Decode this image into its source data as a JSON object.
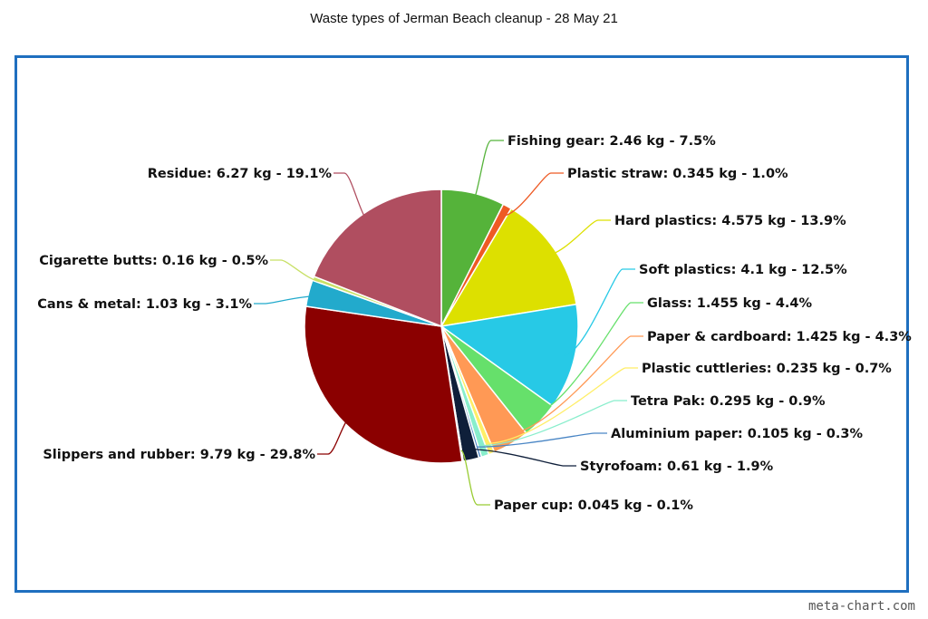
{
  "chart_data": {
    "type": "pie",
    "title": "Waste types of Jerman Beach cleanup - 28 May 21",
    "slices": [
      {
        "name": "Fishing gear",
        "label": "Fishing gear: 2.46 kg - 7.5%",
        "value": 2.46,
        "color": "#55b33a"
      },
      {
        "name": "Plastic straw",
        "label": "Plastic straw: 0.345 kg - 1.0%",
        "value": 0.345,
        "color": "#ee5a24"
      },
      {
        "name": "Hard plastics",
        "label": "Hard plastics: 4.575 kg - 13.9%",
        "value": 4.575,
        "color": "#dde000"
      },
      {
        "name": "Soft plastics",
        "label": "Soft plastics: 4.1 kg - 12.5%",
        "value": 4.1,
        "color": "#27c9e6"
      },
      {
        "name": "Glass",
        "label": "Glass: 1.455 kg - 4.4%",
        "value": 1.455,
        "color": "#66e06b"
      },
      {
        "name": "Paper & cardboard",
        "label": "Paper & cardboard: 1.425 kg - 4.3%",
        "value": 1.425,
        "color": "#ff9955"
      },
      {
        "name": "Plastic cuttleries",
        "label": "Plastic cuttleries: 0.235 kg - 0.7%",
        "value": 0.235,
        "color": "#ffee66"
      },
      {
        "name": "Tetra Pak",
        "label": "Tetra Pak: 0.295 kg - 0.9%",
        "value": 0.295,
        "color": "#88eecc"
      },
      {
        "name": "Aluminium paper",
        "label": "Aluminium paper: 0.105 kg - 0.3%",
        "value": 0.105,
        "color": "#4a86c5"
      },
      {
        "name": "Styrofoam",
        "label": "Styrofoam: 0.61 kg - 1.9%",
        "value": 0.61,
        "color": "#0f1f3a"
      },
      {
        "name": "Paper cup",
        "label": "Paper cup: 0.045 kg - 0.1%",
        "value": 0.045,
        "color": "#99cc33"
      },
      {
        "name": "Slippers and rubber",
        "label": "Slippers and rubber: 9.79 kg - 29.8%",
        "value": 9.79,
        "color": "#8b0000"
      },
      {
        "name": "Cans & metal",
        "label": "Cans & metal: 1.03 kg - 3.1%",
        "value": 1.03,
        "color": "#22aacc"
      },
      {
        "name": "Cigarette butts",
        "label": "Cigarette butts: 0.16 kg - 0.5%",
        "value": 0.16,
        "color": "#c8e066"
      },
      {
        "name": "Residue",
        "label": "Residue: 6.27 kg - 19.1%",
        "value": 6.27,
        "color": "#b04e60"
      }
    ]
  },
  "credit": "meta-chart.com"
}
